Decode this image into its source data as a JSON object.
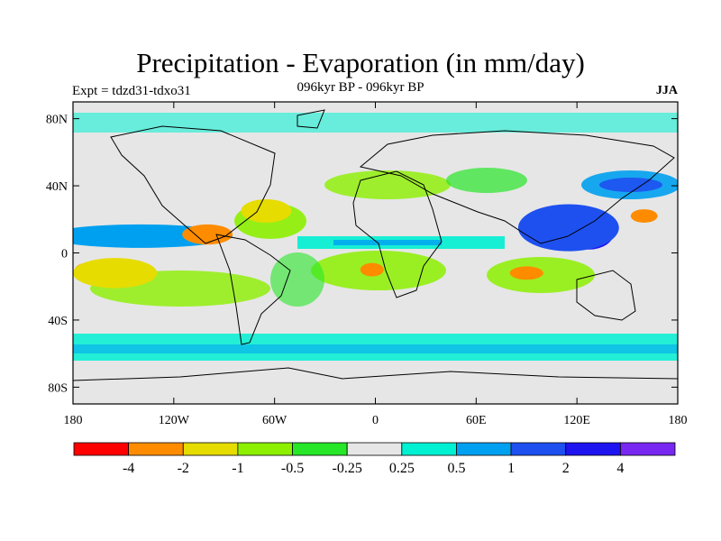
{
  "title": "Precipitation - Evaporation (in mm/day)",
  "subtitle": "096kyr BP - 096kyr BP",
  "experiment": "Expt = tdzd31-tdxo31",
  "season": "JJA",
  "map": {
    "projection": "cylindrical equidistant",
    "lon_range": [
      -180,
      180
    ],
    "lat_range": [
      -90,
      90
    ],
    "lat_ticks": [
      {
        "lat": 80,
        "label": "80N"
      },
      {
        "lat": 40,
        "label": "40N"
      },
      {
        "lat": 0,
        "label": "0"
      },
      {
        "lat": -40,
        "label": "40S"
      },
      {
        "lat": -80,
        "label": "80S"
      }
    ],
    "lon_ticks": [
      {
        "lon": -180,
        "label": "180"
      },
      {
        "lon": -120,
        "label": "120W"
      },
      {
        "lon": -60,
        "label": "60W"
      },
      {
        "lon": 0,
        "label": "0"
      },
      {
        "lon": 60,
        "label": "60E"
      },
      {
        "lon": 120,
        "label": "120E"
      },
      {
        "lon": 180,
        "label": "180"
      }
    ],
    "background_color": "#e6e6e6"
  },
  "colorbar": {
    "colors": [
      "#ff0000",
      "#ff8c00",
      "#e6dc00",
      "#8cf000",
      "#28e628",
      "#e6e6e6",
      "#00f0d2",
      "#00a0f0",
      "#1e50f0",
      "#1e14f0",
      "#7828f0"
    ],
    "labels": [
      "-4",
      "-2",
      "-1",
      "-0.5",
      "-0.25",
      "0.25",
      "0.5",
      "1",
      "2",
      "4"
    ]
  },
  "regions": [
    {
      "name": "pacific-itcz-wet",
      "value": "2",
      "color": "#1e50f0",
      "lon": -150,
      "lat": 9,
      "rlon": 60,
      "rlat": 4
    },
    {
      "name": "pacific-itcz-band",
      "value": "0.5",
      "color": "#00a0f0",
      "lon": -140,
      "lat": 10,
      "rlon": 55,
      "rlat": 7
    },
    {
      "name": "east-pacific-dry",
      "value": "-4",
      "color": "#ff0000",
      "lon": -100,
      "lat": 12,
      "rlon": 9,
      "rlat": 3
    },
    {
      "name": "east-pacific-dry-halo",
      "value": "-2",
      "color": "#ff8c00",
      "lon": -100,
      "lat": 11,
      "rlon": 15,
      "rlat": 6
    },
    {
      "name": "south-pacific-dry",
      "value": "-2",
      "color": "#ff8c00",
      "lon": -165,
      "lat": -10,
      "rlon": 14,
      "rlat": 5
    },
    {
      "name": "south-pacific-dry-halo",
      "value": "-1",
      "color": "#e6dc00",
      "lon": -155,
      "lat": -12,
      "rlon": 25,
      "rlat": 9
    },
    {
      "name": "north-atlantic-dry",
      "value": "-1",
      "color": "#e6dc00",
      "lon": -65,
      "lat": 25,
      "rlon": 15,
      "rlat": 7
    },
    {
      "name": "south-atlantic-dry",
      "value": "-2",
      "color": "#ff8c00",
      "lon": -2,
      "lat": -10,
      "rlon": 7,
      "rlat": 4
    },
    {
      "name": "indian-ocean-dry",
      "value": "-2",
      "color": "#ff8c00",
      "lon": 90,
      "lat": -12,
      "rlon": 10,
      "rlat": 4
    },
    {
      "name": "west-pacific-wet",
      "value": "4",
      "color": "#1e14f0",
      "lon": 127,
      "lat": 12,
      "rlon": 15,
      "rlat": 10
    },
    {
      "name": "asian-monsoon-wet",
      "value": "2",
      "color": "#1e50f0",
      "lon": 115,
      "lat": 15,
      "rlon": 30,
      "rlat": 14
    },
    {
      "name": "nw-pacific-dry",
      "value": "-2",
      "color": "#ff8c00",
      "lon": 160,
      "lat": 22,
      "rlon": 8,
      "rlat": 4
    }
  ]
}
